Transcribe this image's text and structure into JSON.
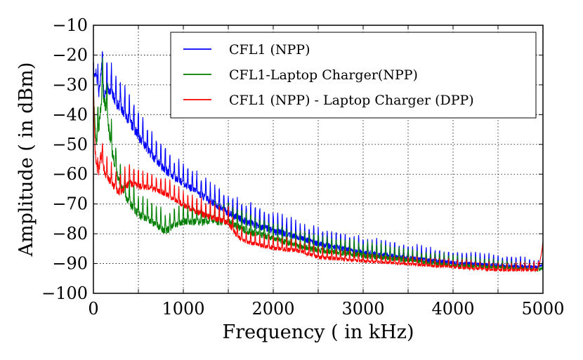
{
  "chart_data": {
    "type": "line",
    "title": "",
    "xlabel": "Frequency ( in kHz)",
    "ylabel": "Amplitude ( in dBm)",
    "xlim": [
      0,
      5000
    ],
    "ylim": [
      -100,
      -10
    ],
    "xticks": [
      0,
      500,
      1000,
      1500,
      2000,
      2500,
      3000,
      3500,
      4000,
      4500,
      5000
    ],
    "xtick_labels": [
      "0",
      "",
      "1000",
      "",
      "2000",
      "",
      "3000",
      "",
      "4000",
      "",
      "5000"
    ],
    "yticks": [
      -100,
      -90,
      -80,
      -70,
      -60,
      -50,
      -40,
      -30,
      -20,
      -10
    ],
    "ytick_labels": [
      "−100",
      "−90",
      "−80",
      "−70",
      "−60",
      "−50",
      "−40",
      "−30",
      "−20",
      "−10"
    ],
    "grid": true,
    "legend_position": "top-right",
    "colors": {
      "blue": "#0000ff",
      "green": "#007f00",
      "red": "#ff0000"
    },
    "series": [
      {
        "name": "CFL1 (NPP)",
        "color": "#0000ff",
        "x": [
          0,
          30,
          60,
          90,
          120,
          150,
          200,
          250,
          300,
          400,
          500,
          600,
          700,
          800,
          900,
          1000,
          1200,
          1400,
          1500,
          1700,
          2000,
          2300,
          2500,
          3000,
          3500,
          4000,
          4500,
          4950,
          5000
        ],
        "y": [
          -25,
          -22,
          -30,
          -19,
          -30,
          -27,
          -28,
          -32,
          -33,
          -38,
          -43,
          -48,
          -52,
          -55,
          -58,
          -60,
          -64,
          -68,
          -70,
          -73,
          -76,
          -79,
          -81,
          -84,
          -86,
          -88,
          -89,
          -90,
          -89
        ],
        "peak_spread": [
          4,
          6,
          6,
          7,
          7,
          7,
          7,
          7,
          7,
          7,
          7,
          6,
          6,
          6,
          5,
          5,
          5,
          5,
          5,
          5,
          5,
          4,
          4,
          4,
          4,
          3,
          3,
          2,
          2
        ]
      },
      {
        "name": "CFL1-Laptop Charger(NPP)",
        "color": "#007f00",
        "x": [
          0,
          30,
          60,
          100,
          150,
          200,
          250,
          300,
          400,
          500,
          600,
          700,
          800,
          900,
          1000,
          1200,
          1500,
          1700,
          2000,
          2300,
          2500,
          3000,
          3500,
          4000,
          4500,
          4950,
          5000
        ],
        "y": [
          -30,
          -45,
          -40,
          -27,
          -35,
          -47,
          -55,
          -60,
          -66,
          -70,
          -72,
          -74,
          -76,
          -74,
          -73,
          -73,
          -73,
          -76,
          -79,
          -82,
          -83,
          -85,
          -87,
          -89,
          -90,
          -91,
          -90
        ],
        "peak_spread": [
          5,
          7,
          8,
          8,
          8,
          7,
          6,
          6,
          6,
          6,
          5,
          5,
          5,
          5,
          5,
          5,
          5,
          5,
          4,
          4,
          4,
          4,
          3,
          3,
          2,
          2,
          2
        ]
      },
      {
        "name": "CFL1 (NPP) - Laptop Charger (DPP)",
        "color": "#ff0000",
        "x": [
          0,
          20,
          50,
          80,
          120,
          150,
          200,
          250,
          300,
          400,
          500,
          600,
          700,
          800,
          900,
          1000,
          1200,
          1500,
          1600,
          1700,
          2000,
          2300,
          2500,
          3000,
          3500,
          4000,
          4500,
          4950,
          5000
        ],
        "y": [
          -32,
          -48,
          -58,
          -50,
          -55,
          -58,
          -60,
          -62,
          -63,
          -60,
          -61,
          -62,
          -63,
          -64,
          -66,
          -68,
          -71,
          -74,
          -79,
          -81,
          -83,
          -84,
          -86,
          -88,
          -89,
          -90,
          -91,
          -91,
          -83
        ],
        "peak_spread": [
          5,
          7,
          6,
          6,
          6,
          5,
          5,
          5,
          5,
          5,
          5,
          4,
          4,
          4,
          4,
          4,
          4,
          4,
          3,
          3,
          3,
          3,
          3,
          2,
          2,
          2,
          2,
          2,
          1
        ]
      }
    ]
  }
}
